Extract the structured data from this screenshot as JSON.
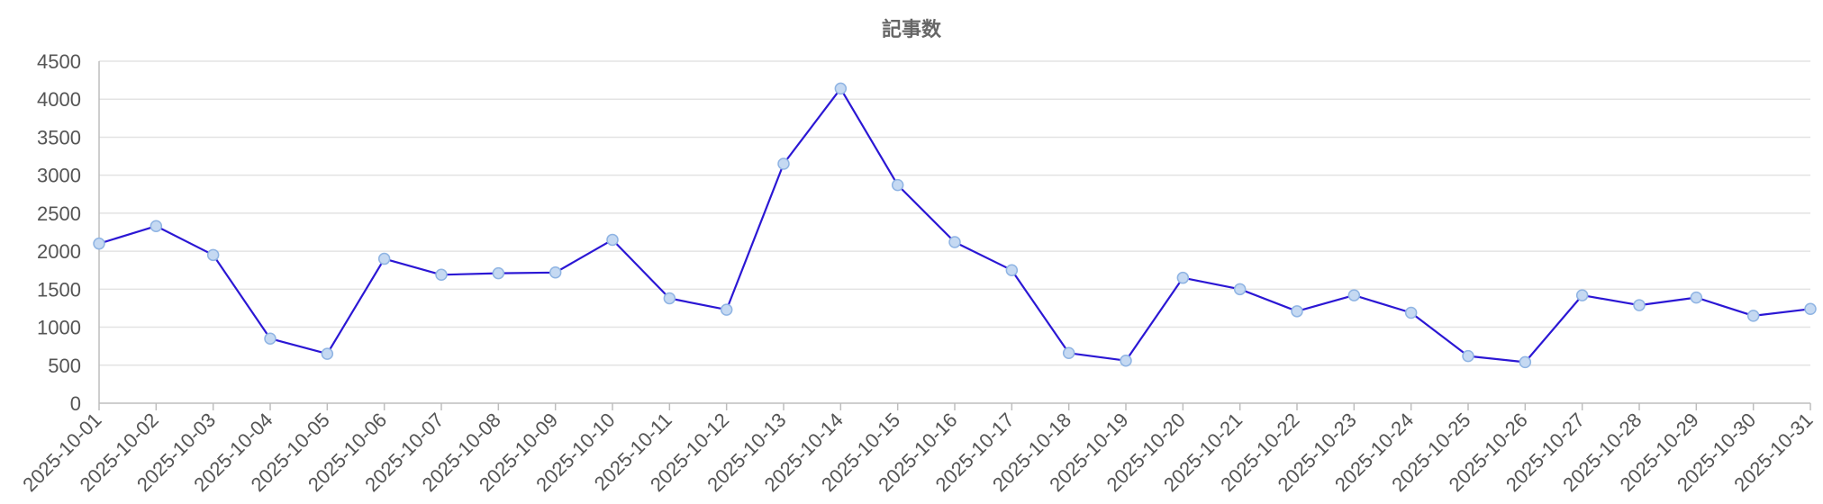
{
  "chart_data": {
    "type": "line",
    "title": "記事数",
    "xlabel": "",
    "ylabel": "",
    "ylim": [
      0,
      4500
    ],
    "yticks": [
      0,
      500,
      1000,
      1500,
      2000,
      2500,
      3000,
      3500,
      4000,
      4500
    ],
    "grid": true,
    "legend": "none",
    "categories": [
      "2025-10-01",
      "2025-10-02",
      "2025-10-03",
      "2025-10-04",
      "2025-10-05",
      "2025-10-06",
      "2025-10-07",
      "2025-10-08",
      "2025-10-09",
      "2025-10-10",
      "2025-10-11",
      "2025-10-12",
      "2025-10-13",
      "2025-10-14",
      "2025-10-15",
      "2025-10-16",
      "2025-10-17",
      "2025-10-18",
      "2025-10-19",
      "2025-10-20",
      "2025-10-21",
      "2025-10-22",
      "2025-10-23",
      "2025-10-24",
      "2025-10-25",
      "2025-10-26",
      "2025-10-27",
      "2025-10-28",
      "2025-10-29",
      "2025-10-30",
      "2025-10-31"
    ],
    "series": [
      {
        "values": [
          2100,
          2330,
          1950,
          850,
          650,
          1900,
          1690,
          1710,
          1720,
          2150,
          1380,
          1230,
          3150,
          4140,
          2870,
          2120,
          1750,
          660,
          560,
          1650,
          1500,
          1210,
          1420,
          1190,
          620,
          540,
          1420,
          1290,
          1390,
          1150,
          1240
        ]
      }
    ]
  },
  "colors": {
    "line": "#2b17d4",
    "point_fill": "#c5d9f2",
    "point_stroke": "#8fb4e3",
    "grid": "#e3e3e3",
    "text": "#555555"
  }
}
